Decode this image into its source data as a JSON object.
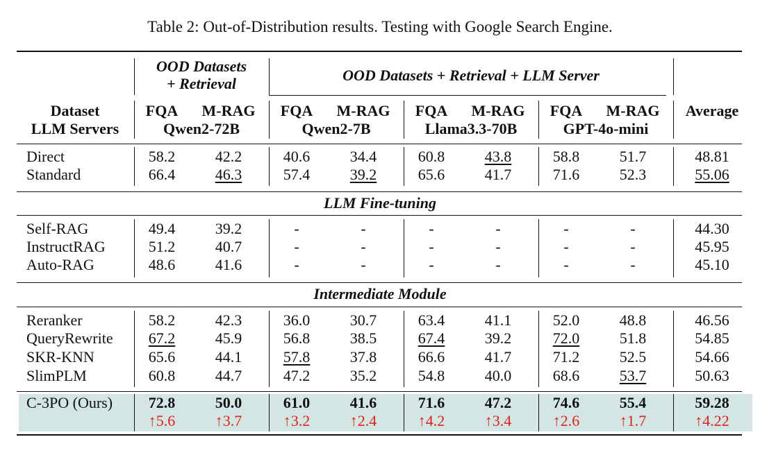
{
  "caption": "Table 2: Out-of-Distribution results. Testing with Google Search Engine.",
  "header": {
    "group1": [
      "OOD Datasets",
      "+ Retrieval"
    ],
    "group2": "OOD Datasets + Retrieval + LLM Server",
    "row_label": [
      "Dataset",
      "LLM Servers"
    ],
    "fqa": "FQA",
    "mrag": "M-RAG",
    "servers": [
      "Qwen2-72B",
      "Qwen2-7B",
      "Llama3.3-70B",
      "GPT-4o-mini"
    ],
    "average": "Average"
  },
  "sections": {
    "finetune": "LLM Fine-tuning",
    "intermediate": "Intermediate Module"
  },
  "rows": [
    {
      "name": "Direct",
      "vals": [
        "58.2",
        "42.2",
        "40.6",
        "34.4",
        "60.8",
        "43.8",
        "58.8",
        "51.7",
        "48.81"
      ]
    },
    {
      "name": "Standard",
      "vals": [
        "66.4",
        "46.3",
        "57.4",
        "39.2",
        "65.6",
        "41.7",
        "71.6",
        "52.3",
        "55.06"
      ]
    },
    {
      "name": "Self-RAG",
      "vals": [
        "49.4",
        "39.2",
        "-",
        "-",
        "-",
        "-",
        "-",
        "-",
        "44.30"
      ]
    },
    {
      "name": "InstructRAG",
      "vals": [
        "51.2",
        "40.7",
        "-",
        "-",
        "-",
        "-",
        "-",
        "-",
        "45.95"
      ]
    },
    {
      "name": "Auto-RAG",
      "vals": [
        "48.6",
        "41.6",
        "-",
        "-",
        "-",
        "-",
        "-",
        "-",
        "45.10"
      ]
    },
    {
      "name": "Reranker",
      "vals": [
        "58.2",
        "42.3",
        "36.0",
        "30.7",
        "63.4",
        "41.1",
        "52.0",
        "48.8",
        "46.56"
      ]
    },
    {
      "name": "QueryRewrite",
      "vals": [
        "67.2",
        "45.9",
        "56.8",
        "38.5",
        "67.4",
        "39.2",
        "72.0",
        "51.8",
        "54.85"
      ]
    },
    {
      "name": "SKR-KNN",
      "vals": [
        "65.6",
        "44.1",
        "57.8",
        "37.8",
        "66.6",
        "41.7",
        "71.2",
        "52.5",
        "54.66"
      ]
    },
    {
      "name": "SlimPLM",
      "vals": [
        "60.8",
        "44.7",
        "47.2",
        "35.2",
        "54.8",
        "40.0",
        "68.6",
        "53.7",
        "50.63"
      ]
    }
  ],
  "ours": {
    "name": "C-3PO (Ours)",
    "vals": [
      "72.8",
      "50.0",
      "61.0",
      "41.6",
      "71.6",
      "47.2",
      "74.6",
      "55.4",
      "59.28"
    ],
    "gains": [
      "↑5.6",
      "↑3.7",
      "↑3.2",
      "↑2.4",
      "↑4.2",
      "↑3.4",
      "↑2.6",
      "↑1.7",
      "↑4.22"
    ]
  }
}
